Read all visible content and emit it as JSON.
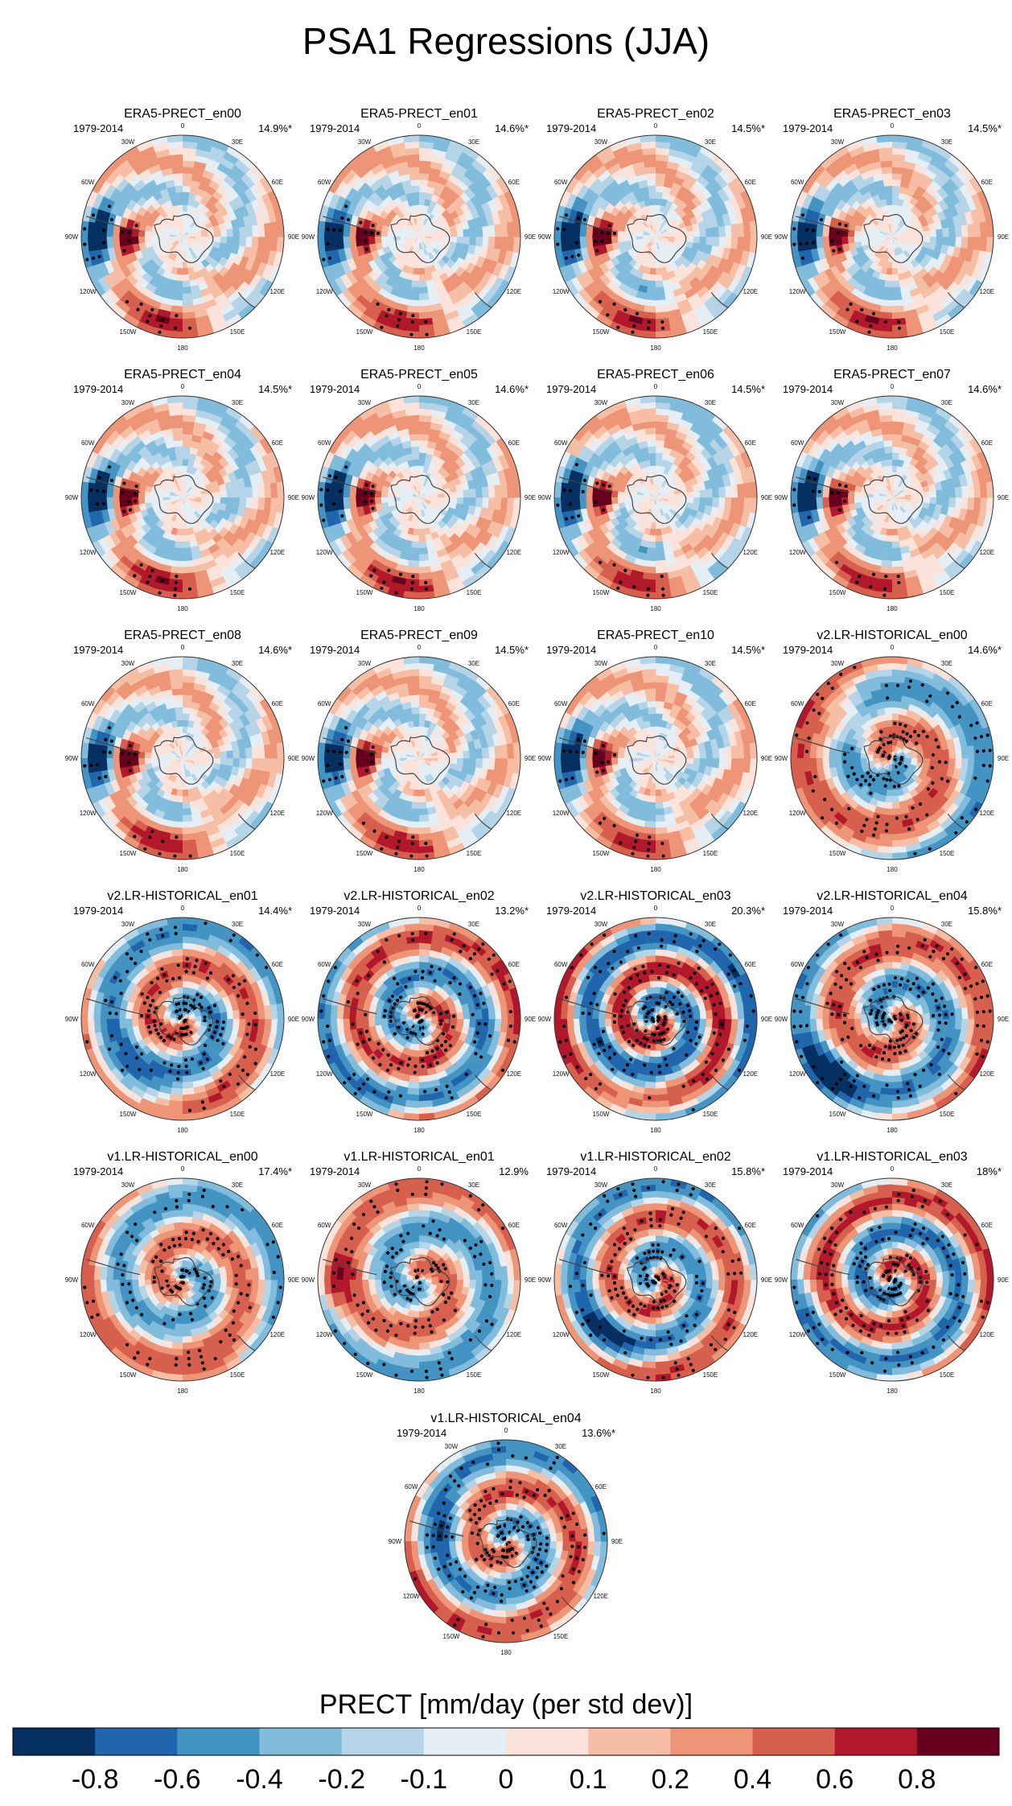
{
  "chart_data": {
    "type": "heatmap",
    "projection": "south-polar-stereographic",
    "title": "PSA1 Regressions (JJA)",
    "variable_label": "PRECT [mm/day (per std dev)]",
    "stipple_meaning": "significant regression",
    "lon_labels": [
      "0",
      "30E",
      "60E",
      "90E",
      "120E",
      "150E",
      "180",
      "150W",
      "120W",
      "90W",
      "60W",
      "30W"
    ],
    "colorbar": {
      "levels": [
        "-0.8",
        "-0.6",
        "-0.4",
        "-0.2",
        "-0.1",
        "0",
        "0.1",
        "0.2",
        "0.4",
        "0.6",
        "0.8"
      ],
      "colors": [
        "#053061",
        "#2166ac",
        "#4393c3",
        "#82bcdc",
        "#b5d4e8",
        "#e4eef4",
        "#fbe3db",
        "#f6bea5",
        "#ed9576",
        "#d6604d",
        "#b2182b",
        "#67001f"
      ]
    },
    "panels": [
      {
        "name": "ERA5-PRECT_en00",
        "period": "1979-2014",
        "variance": "14.9%*",
        "pattern": "era5",
        "seed": 1
      },
      {
        "name": "ERA5-PRECT_en01",
        "period": "1979-2014",
        "variance": "14.6%*",
        "pattern": "era5",
        "seed": 2
      },
      {
        "name": "ERA5-PRECT_en02",
        "period": "1979-2014",
        "variance": "14.5%*",
        "pattern": "era5",
        "seed": 3
      },
      {
        "name": "ERA5-PRECT_en03",
        "period": "1979-2014",
        "variance": "14.5%*",
        "pattern": "era5",
        "seed": 4
      },
      {
        "name": "ERA5-PRECT_en04",
        "period": "1979-2014",
        "variance": "14.5%*",
        "pattern": "era5",
        "seed": 5
      },
      {
        "name": "ERA5-PRECT_en05",
        "period": "1979-2014",
        "variance": "14.6%*",
        "pattern": "era5",
        "seed": 6
      },
      {
        "name": "ERA5-PRECT_en06",
        "period": "1979-2014",
        "variance": "14.5%*",
        "pattern": "era5",
        "seed": 7
      },
      {
        "name": "ERA5-PRECT_en07",
        "period": "1979-2014",
        "variance": "14.6%*",
        "pattern": "era5",
        "seed": 8
      },
      {
        "name": "ERA5-PRECT_en08",
        "period": "1979-2014",
        "variance": "14.6%*",
        "pattern": "era5",
        "seed": 9
      },
      {
        "name": "ERA5-PRECT_en09",
        "period": "1979-2014",
        "variance": "14.5%*",
        "pattern": "era5",
        "seed": 10
      },
      {
        "name": "ERA5-PRECT_en10",
        "period": "1979-2014",
        "variance": "14.5%*",
        "pattern": "era5",
        "seed": 11
      },
      {
        "name": "v2.LR-HISTORICAL_en00",
        "period": "1979-2014",
        "variance": "14.6%*",
        "pattern": "v2a",
        "seed": 12
      },
      {
        "name": "v2.LR-HISTORICAL_en01",
        "period": "1979-2014",
        "variance": "14.4%*",
        "pattern": "v2b",
        "seed": 13
      },
      {
        "name": "v2.LR-HISTORICAL_en02",
        "period": "1979-2014",
        "variance": "13.2%*",
        "pattern": "v2c",
        "seed": 14
      },
      {
        "name": "v2.LR-HISTORICAL_en03",
        "period": "1979-2014",
        "variance": "20.3%*",
        "pattern": "v2d",
        "seed": 15
      },
      {
        "name": "v2.LR-HISTORICAL_en04",
        "period": "1979-2014",
        "variance": "15.8%*",
        "pattern": "v2e",
        "seed": 16
      },
      {
        "name": "v1.LR-HISTORICAL_en00",
        "period": "1979-2014",
        "variance": "17.4%*",
        "pattern": "v1a",
        "seed": 17
      },
      {
        "name": "v1.LR-HISTORICAL_en01",
        "period": "1979-2014",
        "variance": "12.9%",
        "pattern": "v1b",
        "seed": 18
      },
      {
        "name": "v1.LR-HISTORICAL_en02",
        "period": "1979-2014",
        "variance": "15.8%*",
        "pattern": "v1c",
        "seed": 19
      },
      {
        "name": "v1.LR-HISTORICAL_en03",
        "period": "1979-2014",
        "variance": "18%*",
        "pattern": "v1d",
        "seed": 20
      },
      {
        "name": "v1.LR-HISTORICAL_en04",
        "period": "1979-2014",
        "variance": "13.6%*",
        "pattern": "v1e",
        "seed": 21
      }
    ]
  }
}
